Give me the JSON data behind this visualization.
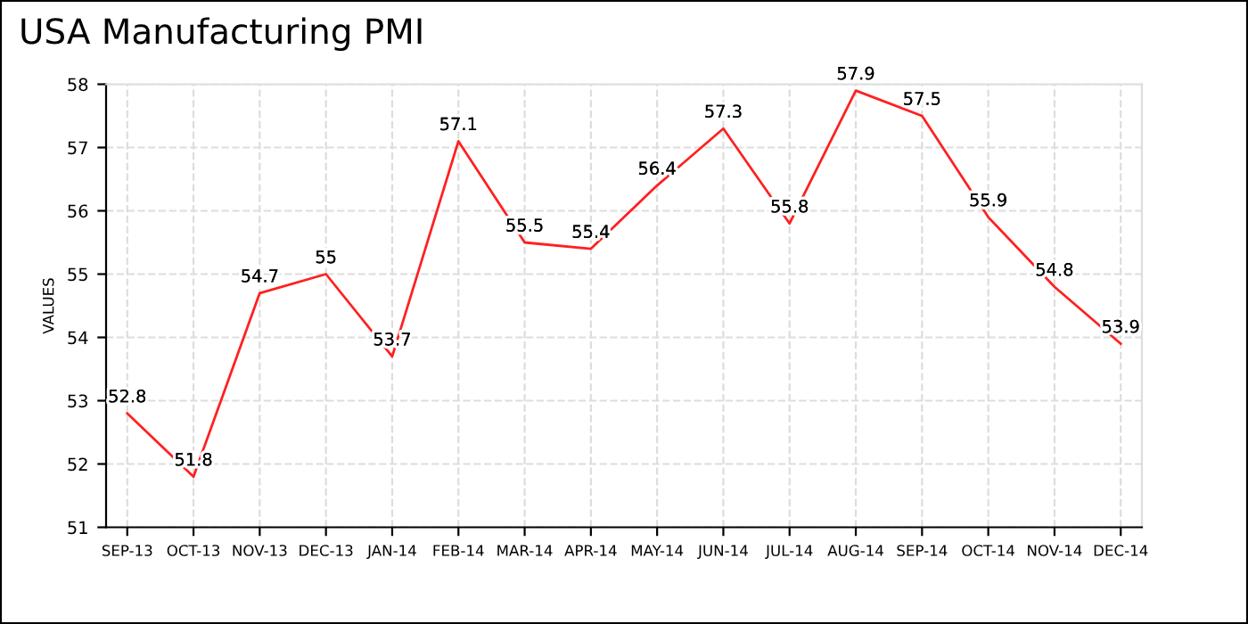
{
  "chart_data": {
    "type": "line",
    "title": "USA Manufacturing PMI",
    "ylabel": "VALUES",
    "categories": [
      "SEP-13",
      "OCT-13",
      "NOV-13",
      "DEC-13",
      "JAN-14",
      "FEB-14",
      "MAR-14",
      "APR-14",
      "MAY-14",
      "JUN-14",
      "JUL-14",
      "AUG-14",
      "SEP-14",
      "OCT-14",
      "NOV-14",
      "DEC-14"
    ],
    "series": [
      {
        "color": "#ff2020",
        "values": [
          52.8,
          51.8,
          54.7,
          55,
          53.7,
          57.1,
          55.5,
          55.4,
          56.4,
          57.3,
          55.8,
          57.9,
          57.5,
          55.9,
          54.8,
          53.9
        ]
      }
    ],
    "ylim": [
      51,
      58
    ],
    "yticks": [
      51,
      52,
      53,
      54,
      55,
      56,
      57,
      58
    ],
    "grid": true,
    "data_labels": true,
    "line_style": "solid",
    "marker": "none",
    "legend": false
  }
}
